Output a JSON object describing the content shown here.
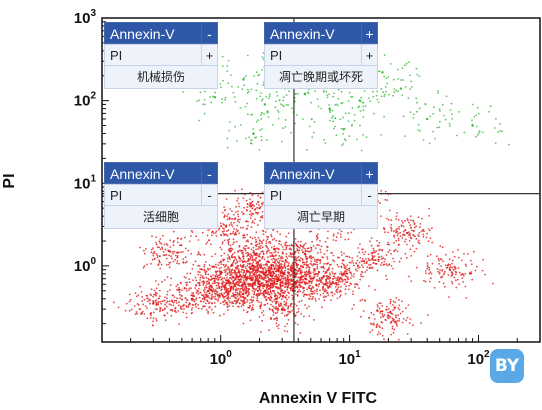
{
  "chart_data": {
    "type": "scatter",
    "xlabel": "Annexin V FITC",
    "ylabel": "PI",
    "x_scale": "log",
    "y_scale": "log",
    "xlim": [
      0.12,
      300
    ],
    "ylim": [
      0.12,
      1000
    ],
    "x_ticks": [
      {
        "value": 1,
        "base": "10",
        "exp": "0"
      },
      {
        "value": 10,
        "base": "10",
        "exp": "1"
      },
      {
        "value": 100,
        "base": "10",
        "exp": "2"
      }
    ],
    "y_ticks": [
      {
        "value": 1,
        "base": "10",
        "exp": "0"
      },
      {
        "value": 10,
        "base": "10",
        "exp": "1"
      },
      {
        "value": 100,
        "base": "10",
        "exp": "2"
      },
      {
        "value": 1000,
        "base": "10",
        "exp": "3"
      }
    ],
    "gates": {
      "x": 3.7,
      "y": 7.5
    },
    "grid": false,
    "series": [
      {
        "color": "#e01e1e",
        "points": [
          [
            1.2,
            0.55
          ],
          [
            1.6,
            0.7
          ],
          [
            2.0,
            0.6
          ],
          [
            2.4,
            0.85
          ],
          [
            1.4,
            0.45
          ],
          [
            2.8,
            0.7
          ],
          [
            3.3,
            0.55
          ],
          [
            1.0,
            0.8
          ],
          [
            1.8,
            1.0
          ],
          [
            2.2,
            0.5
          ],
          [
            0.8,
            0.5
          ],
          [
            3.8,
            0.9
          ],
          [
            5.0,
            0.7
          ],
          [
            6.5,
            0.6
          ],
          [
            1.5,
            1.3
          ],
          [
            2.6,
            1.6
          ],
          [
            0.6,
            0.4
          ],
          [
            4.5,
            1.4
          ],
          [
            9.0,
            0.8
          ],
          [
            15,
            1.2
          ],
          [
            28,
            2.5
          ],
          [
            60,
            0.9
          ],
          [
            0.4,
            1.5
          ],
          [
            0.3,
            0.35
          ],
          [
            1.1,
            3.0
          ],
          [
            2.0,
            5.0
          ],
          [
            7.0,
            3.5
          ],
          [
            12,
            6.0
          ],
          [
            3.0,
            0.3
          ],
          [
            20,
            0.25
          ]
        ]
      },
      {
        "color": "#3cb83c",
        "points": [
          [
            0.9,
            110
          ],
          [
            1.5,
            180
          ],
          [
            2.2,
            90
          ],
          [
            3.0,
            150
          ],
          [
            4.5,
            120
          ],
          [
            7.0,
            80
          ],
          [
            12,
            100
          ],
          [
            25,
            140
          ],
          [
            40,
            60
          ],
          [
            90,
            50
          ],
          [
            1.8,
            40
          ],
          [
            5.5,
            300
          ],
          [
            18,
            220
          ],
          [
            2.8,
            260
          ],
          [
            9.0,
            45
          ]
        ]
      }
    ],
    "quadrants": [
      {
        "pos": "top-left",
        "header": "Annexin-V",
        "header_sign": "-",
        "pi": "PI",
        "pi_sign": "+",
        "desc": "机械损伤"
      },
      {
        "pos": "top-right",
        "header": "Annexin-V",
        "header_sign": "+",
        "pi": "PI",
        "pi_sign": "+",
        "desc": "凋亡晚期或坏死"
      },
      {
        "pos": "bottom-left",
        "header": "Annexin-V",
        "header_sign": "-",
        "pi": "PI",
        "pi_sign": "-",
        "desc": "活细胞"
      },
      {
        "pos": "bottom-right",
        "header": "Annexin-V",
        "header_sign": "+",
        "pi": "PI",
        "pi_sign": "-",
        "desc": "凋亡早期"
      }
    ]
  },
  "logo": {
    "text": "BY"
  }
}
